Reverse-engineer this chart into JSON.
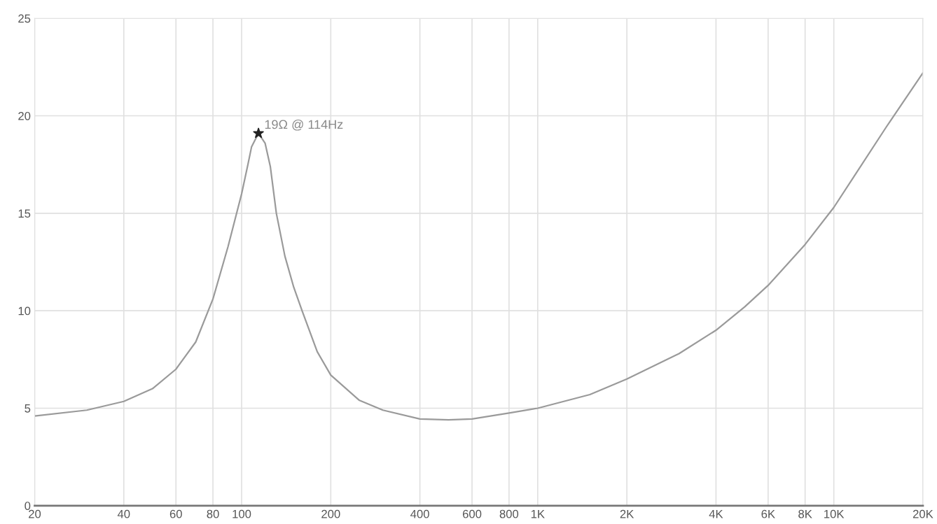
{
  "chart_data": {
    "type": "line",
    "log": "x",
    "grid": true,
    "marker": "none",
    "line_style": "solid",
    "xlim": [
      20,
      20000
    ],
    "ylim": [
      0,
      25
    ],
    "xticks": [
      20,
      40,
      60,
      80,
      100,
      200,
      400,
      600,
      800,
      {
        "value": 1000,
        "label": "1K"
      },
      {
        "value": 2000,
        "label": "2K"
      },
      {
        "value": 4000,
        "label": "4K"
      },
      {
        "value": 6000,
        "label": "6K"
      },
      {
        "value": 8000,
        "label": "8K"
      },
      {
        "value": 10000,
        "label": "10K"
      },
      {
        "value": 20000,
        "label": "20K"
      }
    ],
    "yticks": [
      0,
      5,
      10,
      15,
      20,
      25
    ],
    "x": [
      20,
      30,
      40,
      50,
      60,
      70,
      80,
      90,
      100,
      105,
      108,
      114,
      120,
      125,
      131,
      140,
      150,
      160,
      180,
      200,
      250,
      300,
      400,
      500,
      600,
      800,
      1000,
      1500,
      2000,
      3000,
      4000,
      5000,
      6000,
      8000,
      10000,
      15000,
      20000
    ],
    "series": [
      {
        "color": "#9a9a9a",
        "values": [
          4.6,
          4.9,
          5.35,
          6.0,
          7.0,
          8.4,
          10.6,
          13.3,
          16.0,
          17.5,
          18.4,
          19.1,
          18.6,
          17.4,
          15.0,
          12.8,
          11.2,
          10.0,
          7.9,
          6.7,
          5.4,
          4.9,
          4.45,
          4.4,
          4.45,
          4.75,
          5.0,
          5.7,
          6.5,
          7.8,
          9.0,
          10.2,
          11.3,
          13.4,
          15.3,
          19.4,
          22.2
        ]
      }
    ],
    "annotations": [
      {
        "text": "19Ω @ 114Hz",
        "x": 114,
        "y": 19.1
      }
    ]
  }
}
